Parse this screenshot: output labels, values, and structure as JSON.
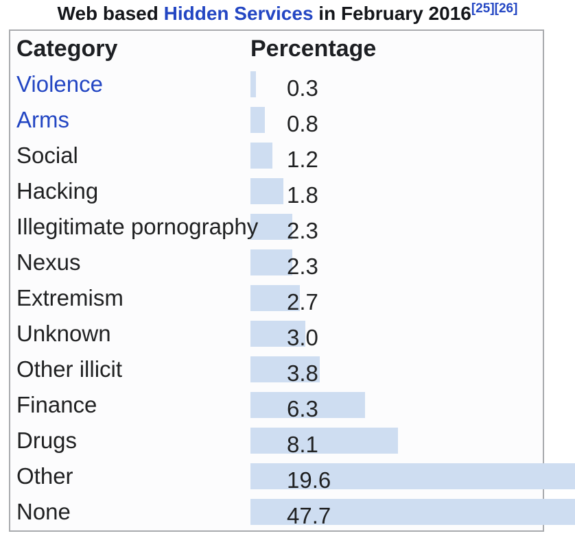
{
  "title": {
    "prefix": "Web based ",
    "link": "Hidden Services",
    "suffix": " in February 2016",
    "refs": [
      "[25]",
      "[26]"
    ]
  },
  "table": {
    "headers": {
      "category": "Category",
      "percentage": "Percentage"
    },
    "rows": [
      {
        "label": "Violence",
        "value": 0.3,
        "display": "0.3",
        "is_link": true
      },
      {
        "label": "Arms",
        "value": 0.8,
        "display": "0.8",
        "is_link": true
      },
      {
        "label": "Social",
        "value": 1.2,
        "display": "1.2",
        "is_link": false
      },
      {
        "label": "Hacking",
        "value": 1.8,
        "display": "1.8",
        "is_link": false
      },
      {
        "label": "Illegitimate pornography",
        "value": 2.3,
        "display": "2.3",
        "is_link": false
      },
      {
        "label": "Nexus",
        "value": 2.3,
        "display": "2.3",
        "is_link": false
      },
      {
        "label": "Extremism",
        "value": 2.7,
        "display": "2.7",
        "is_link": false
      },
      {
        "label": "Unknown",
        "value": 3.0,
        "display": "3.0",
        "is_link": false
      },
      {
        "label": "Other illicit",
        "value": 3.8,
        "display": "3.8",
        "is_link": false
      },
      {
        "label": "Finance",
        "value": 6.3,
        "display": "6.3",
        "is_link": false
      },
      {
        "label": "Drugs",
        "value": 8.1,
        "display": "8.1",
        "is_link": false
      },
      {
        "label": "Other",
        "value": 19.6,
        "display": "19.6",
        "is_link": false
      },
      {
        "label": "None",
        "value": 47.7,
        "display": "47.7",
        "is_link": false
      }
    ]
  },
  "chart_data": {
    "type": "bar",
    "orientation": "horizontal",
    "title": "Web based Hidden Services in February 2016",
    "xlabel": "Percentage",
    "ylabel": "Category",
    "categories": [
      "Violence",
      "Arms",
      "Social",
      "Hacking",
      "Illegitimate pornography",
      "Nexus",
      "Extremism",
      "Unknown",
      "Other illicit",
      "Finance",
      "Drugs",
      "Other",
      "None"
    ],
    "values": [
      0.3,
      0.8,
      1.2,
      1.8,
      2.3,
      2.3,
      2.7,
      3.0,
      3.8,
      6.3,
      8.1,
      19.6,
      47.7
    ],
    "annotations": [
      "references [25] and [26] in title"
    ],
    "grid": false,
    "legend": false
  },
  "colors": {
    "bar": "#ceddf1",
    "link": "#2346c3",
    "text": "#202122",
    "border": "#a8aaad"
  }
}
